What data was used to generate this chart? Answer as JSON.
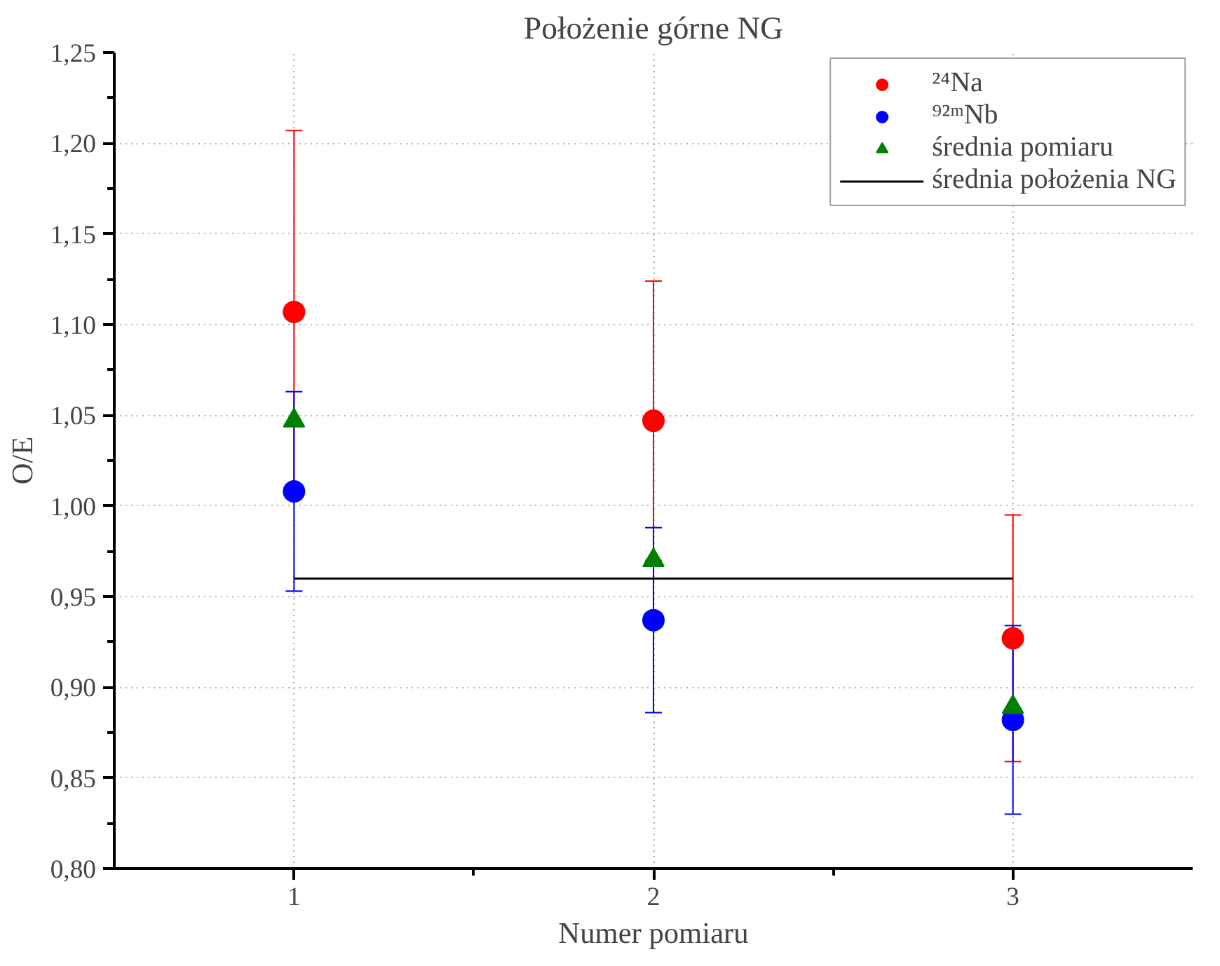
{
  "chart_data": {
    "type": "scatter",
    "title": "Położenie górne NG",
    "xlabel": "Numer pomiaru",
    "ylabel": "O/E",
    "xlim": [
      0.5,
      3.5
    ],
    "xticks": [
      1,
      2,
      3,
      {
        "value": 1.5,
        "label": null
      },
      {
        "value": 2.5,
        "label": null
      }
    ],
    "ylim": [
      0.8,
      1.25
    ],
    "yticks": [
      {
        "value": 0.8,
        "label": "0,80"
      },
      {
        "value": 0.85,
        "label": "0,85"
      },
      {
        "value": 0.9,
        "label": "0,90"
      },
      {
        "value": 0.95,
        "label": "0,95"
      },
      {
        "value": 1.0,
        "label": "1,00"
      },
      {
        "value": 1.05,
        "label": "1,05"
      },
      {
        "value": 1.1,
        "label": "1,10"
      },
      {
        "value": 1.15,
        "label": "1,15"
      },
      {
        "value": 1.2,
        "label": "1,20"
      },
      {
        "value": 1.25,
        "label": "1,25"
      },
      {
        "value": 0.825,
        "label": null
      },
      {
        "value": 0.875,
        "label": null
      },
      {
        "value": 0.925,
        "label": null
      },
      {
        "value": 0.975,
        "label": null
      },
      {
        "value": 1.025,
        "label": null
      },
      {
        "value": 1.075,
        "label": null
      },
      {
        "value": 1.125,
        "label": null
      },
      {
        "value": 1.175,
        "label": null
      },
      {
        "value": 1.225,
        "label": null
      }
    ],
    "grid": true,
    "legend": "top right",
    "series": [
      {
        "name": "²⁴Na",
        "marker": "circle",
        "color": "#ff0000",
        "x": [
          1,
          2,
          3
        ],
        "values": [
          1.107,
          1.047,
          0.927
        ],
        "errors": [
          0.1,
          0.077,
          0.068
        ]
      },
      {
        "name": "⁹²ᵐNb",
        "marker": "circle",
        "color": "#0000ff",
        "x": [
          1,
          2,
          3
        ],
        "values": [
          1.008,
          0.937,
          0.882
        ],
        "errors": [
          0.055,
          0.051,
          0.052
        ]
      },
      {
        "name": "średnia pomiaru",
        "marker": "triangle",
        "color": "#008000",
        "x": [
          1,
          2,
          3
        ],
        "values": [
          1.047,
          0.97,
          0.889
        ]
      },
      {
        "name": "średnia położenia NG",
        "type": "line",
        "line_style": "solid",
        "color": "#000000",
        "x": [
          1,
          3
        ],
        "values": [
          0.96,
          0.96
        ]
      }
    ]
  }
}
